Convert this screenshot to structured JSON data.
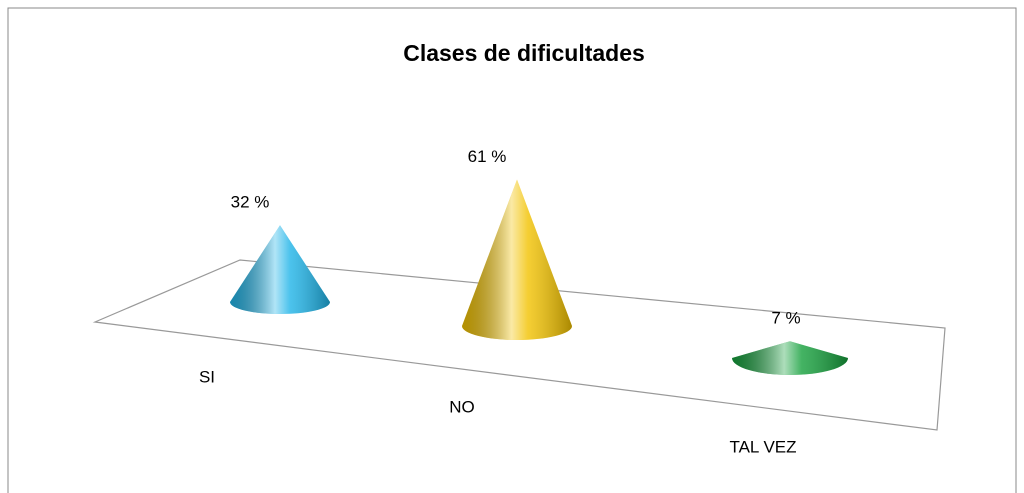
{
  "chart_data": {
    "type": "cone",
    "title": "Clases de dificultades",
    "categories": [
      "SI",
      "NO",
      "TAL VEZ"
    ],
    "values": [
      32,
      61,
      7
    ],
    "value_labels": [
      "32 %",
      "61 %",
      "7 %"
    ],
    "colors": [
      "#1fb4e8",
      "#f2c200",
      "#15a03c"
    ]
  }
}
